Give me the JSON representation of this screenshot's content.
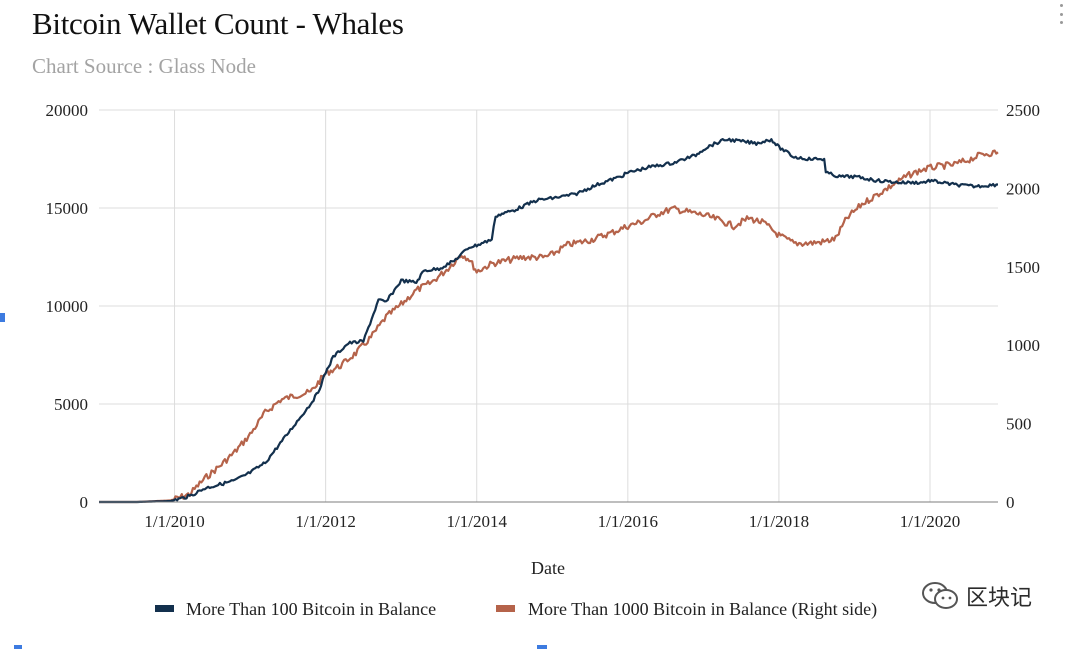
{
  "header": {
    "title": "Bitcoin Wallet Count - Whales",
    "subtitle": "Chart Source : Glass Node"
  },
  "watermark": {
    "label": "区块记"
  },
  "chart_data": {
    "type": "line",
    "title": "Bitcoin Wallet Count - Whales",
    "subtitle": "Chart Source : Glass Node",
    "xlabel": "Date",
    "ylabel": "",
    "x_range": [
      2009.0,
      2020.9
    ],
    "x_ticks": [
      2010,
      2012,
      2014,
      2016,
      2018,
      2020
    ],
    "x_tick_labels": [
      "1/1/2010",
      "1/1/2012",
      "1/1/2014",
      "1/1/2016",
      "1/1/2018",
      "1/1/2020"
    ],
    "y_left": {
      "range": [
        0,
        20000
      ],
      "ticks": [
        0,
        5000,
        10000,
        15000,
        20000
      ],
      "tick_labels": [
        "0",
        "5000",
        "10000",
        "15000",
        "20000"
      ]
    },
    "y_right": {
      "range": [
        0,
        2500
      ],
      "ticks": [
        0,
        500,
        1000,
        1500,
        2000,
        2500
      ],
      "tick_labels": [
        "0",
        "500",
        "1000",
        "1500",
        "2000",
        "2500"
      ]
    },
    "grid": true,
    "legend_position": "bottom",
    "series": [
      {
        "name": "More Than 100 Bitcoin in Balance",
        "axis": "left",
        "color": "#13304d",
        "x": [
          2009.0,
          2009.5,
          2009.95,
          2010.2,
          2010.4,
          2010.6,
          2010.8,
          2011.0,
          2011.2,
          2011.4,
          2011.6,
          2011.8,
          2011.9,
          2012.0,
          2012.1,
          2012.3,
          2012.5,
          2012.7,
          2012.8,
          2013.0,
          2013.2,
          2013.3,
          2013.5,
          2013.7,
          2013.9,
          2014.0,
          2014.2,
          2014.25,
          2014.5,
          2014.8,
          2015.0,
          2015.3,
          2015.6,
          2015.9,
          2016.0,
          2016.3,
          2016.6,
          2016.9,
          2017.0,
          2017.1,
          2017.3,
          2017.5,
          2017.7,
          2017.9,
          2018.0,
          2018.2,
          2018.4,
          2018.6,
          2018.62,
          2018.8,
          2019.0,
          2019.3,
          2019.6,
          2019.9,
          2020.0,
          2020.3,
          2020.6,
          2020.9
        ],
        "values": [
          0,
          0,
          50,
          300,
          700,
          900,
          1100,
          1500,
          2000,
          3000,
          4000,
          5000,
          5600,
          6600,
          7400,
          8100,
          8200,
          10300,
          10200,
          11300,
          11200,
          11800,
          11900,
          12300,
          13000,
          13100,
          13400,
          14600,
          14900,
          15400,
          15500,
          15700,
          16200,
          16600,
          16800,
          17100,
          17300,
          17700,
          18000,
          18200,
          18500,
          18400,
          18300,
          18500,
          18100,
          17600,
          17500,
          17500,
          16800,
          16600,
          16600,
          16400,
          16300,
          16300,
          16400,
          16200,
          16100,
          16200
        ]
      },
      {
        "name": "More Than 1000 Bitcoin in Balance (Right side)",
        "axis": "right",
        "color": "#b5634a",
        "x": [
          2009.0,
          2009.5,
          2009.95,
          2010.2,
          2010.4,
          2010.6,
          2010.8,
          2011.0,
          2011.2,
          2011.4,
          2011.6,
          2011.8,
          2011.9,
          2012.0,
          2012.2,
          2012.4,
          2012.6,
          2012.8,
          2013.0,
          2013.2,
          2013.4,
          2013.6,
          2013.8,
          2013.9,
          2014.0,
          2014.2,
          2014.4,
          2014.6,
          2014.9,
          2015.0,
          2015.2,
          2015.5,
          2015.8,
          2016.0,
          2016.2,
          2016.4,
          2016.6,
          2016.8,
          2017.0,
          2017.2,
          2017.4,
          2017.6,
          2017.8,
          2018.0,
          2018.2,
          2018.4,
          2018.6,
          2018.75,
          2018.9,
          2019.1,
          2019.3,
          2019.5,
          2019.7,
          2019.9,
          2020.1,
          2020.3,
          2020.5,
          2020.7,
          2020.9
        ],
        "values": [
          0,
          0,
          10,
          50,
          150,
          230,
          320,
          430,
          570,
          650,
          680,
          700,
          760,
          820,
          870,
          950,
          1050,
          1180,
          1260,
          1350,
          1400,
          1480,
          1580,
          1550,
          1470,
          1520,
          1540,
          1560,
          1560,
          1580,
          1640,
          1670,
          1720,
          1760,
          1790,
          1840,
          1870,
          1850,
          1830,
          1800,
          1760,
          1810,
          1780,
          1700,
          1650,
          1650,
          1660,
          1680,
          1810,
          1900,
          1960,
          2020,
          2080,
          2120,
          2140,
          2150,
          2180,
          2220,
          2230
        ]
      }
    ]
  }
}
